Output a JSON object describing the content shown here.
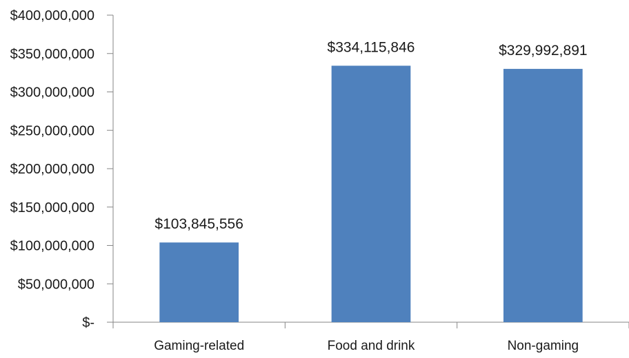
{
  "chart_data": {
    "type": "bar",
    "title": "",
    "xlabel": "",
    "ylabel": "",
    "categories": [
      "Gaming-related",
      "Food and drink",
      "Non-gaming"
    ],
    "values": [
      103845556,
      334115846,
      329992891
    ],
    "data_labels": [
      "$103,845,556",
      "$334,115,846",
      "$329,992,891"
    ],
    "ylim": [
      0,
      400000000
    ],
    "yticks": [
      0,
      50000000,
      100000000,
      150000000,
      200000000,
      250000000,
      300000000,
      350000000,
      400000000
    ],
    "ytick_labels": [
      "$-",
      "$50,000,000",
      "$100,000,000",
      "$150,000,000",
      "$200,000,000",
      "$250,000,000",
      "$300,000,000",
      "$350,000,000",
      "$400,000,000"
    ],
    "grid": false,
    "legend": "none",
    "bar_color": "#4f81bd",
    "axis_color": "#868686"
  }
}
